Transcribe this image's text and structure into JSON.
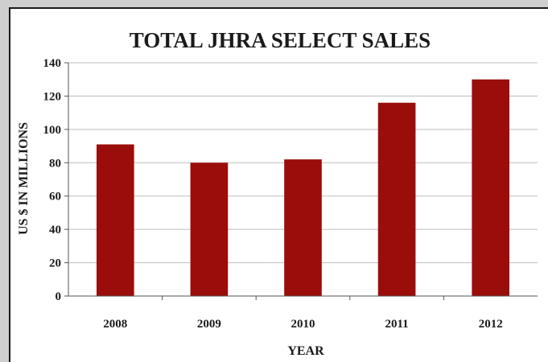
{
  "chart_data": {
    "type": "bar",
    "title": "TOTAL JHRA SELECT SALES",
    "xlabel": "YEAR",
    "ylabel": "US $ IN MILLIONS",
    "categories": [
      "2008",
      "2009",
      "2010",
      "2011",
      "2012"
    ],
    "values": [
      91,
      80,
      82,
      116,
      130
    ],
    "ylim": [
      0,
      140
    ],
    "yticks": [
      0,
      20,
      40,
      60,
      80,
      100,
      120,
      140
    ],
    "grid": true,
    "bar_color": "#9b0d0a"
  }
}
